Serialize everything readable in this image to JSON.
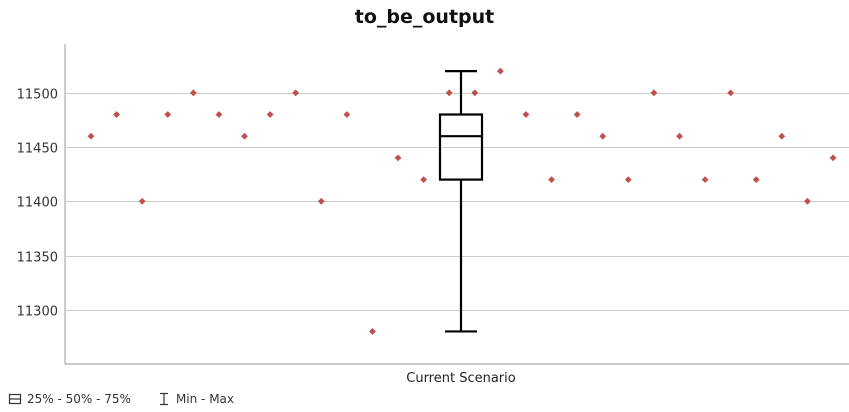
{
  "chart_data": {
    "type": "box",
    "title": "to_be_output",
    "xlabel": "",
    "ylabel": "",
    "categories": [
      "Current Scenario"
    ],
    "ylim": [
      11250,
      11545
    ],
    "yticks": [
      11300,
      11350,
      11400,
      11450,
      11500
    ],
    "ytick_labels": [
      "11300",
      "11350",
      "11400",
      "11450",
      "11500"
    ],
    "grid": true,
    "box": {
      "min": 11280,
      "q1": 11420,
      "median": 11460,
      "q3": 11480,
      "max": 11520
    },
    "points": [
      11460,
      11480,
      11400,
      11480,
      11500,
      11480,
      11460,
      11480,
      11500,
      11400,
      11480,
      11280,
      11440,
      11420,
      11500,
      11500,
      11520,
      11480,
      11420,
      11480,
      11460,
      11420,
      11500,
      11460,
      11420,
      11500,
      11420,
      11460,
      11400,
      11440
    ],
    "colors": {
      "points": "#c0504d",
      "box": "#000000",
      "grid": "#cccccc",
      "axis": "#999999"
    },
    "legend": {
      "position": "bottom-left",
      "items": [
        {
          "icon": "quartile-box-icon",
          "label": "25% - 50% - 75%"
        },
        {
          "icon": "min-max-whisker-icon",
          "label": "Min - Max"
        }
      ]
    }
  }
}
